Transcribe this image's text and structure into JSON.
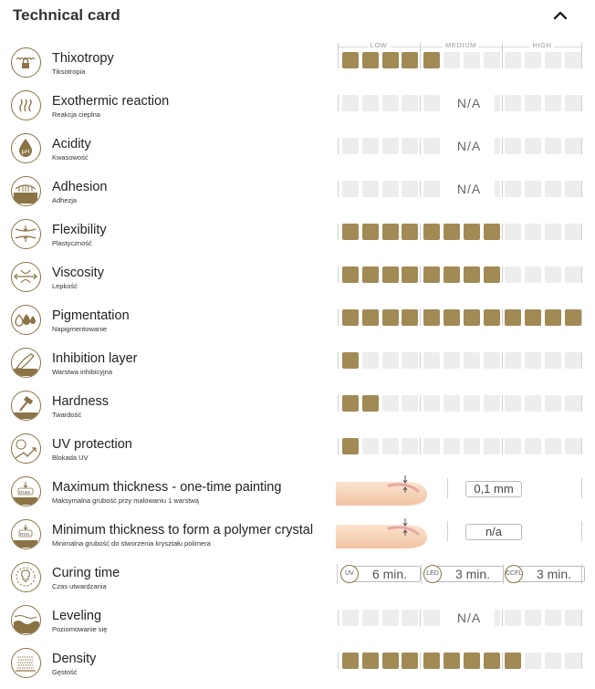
{
  "card": {
    "title": "Technical card"
  },
  "scale": {
    "low": "LOW",
    "medium": "MEDIUM",
    "high": "HIGH"
  },
  "colors": {
    "accent": "#a28a55",
    "empty": "#ededed",
    "icon_border": "#8a7344"
  },
  "rows": [
    {
      "name": "Thixotropy",
      "sub": "Tiksotropia",
      "type": "level",
      "level": 5,
      "icon": "thixotropy-icon"
    },
    {
      "name": "Exothermic reaction",
      "sub": "Reakcja cieplna",
      "type": "na",
      "value": "N/A",
      "icon": "heat-icon"
    },
    {
      "name": "Acidity",
      "sub": "Kwasowość",
      "type": "na",
      "value": "N/A",
      "icon": "ph-drop-icon"
    },
    {
      "name": "Adhesion",
      "sub": "Adhezja",
      "type": "na",
      "value": "N/A",
      "icon": "adhesion-icon"
    },
    {
      "name": "Flexibility",
      "sub": "Plastyczność",
      "type": "level",
      "level": 8,
      "icon": "flexibility-icon"
    },
    {
      "name": "Viscosity",
      "sub": "Lepkość",
      "type": "level",
      "level": 8,
      "icon": "viscosity-icon"
    },
    {
      "name": "Pigmentation",
      "sub": "Napigmentowanie",
      "type": "level",
      "level": 12,
      "icon": "pigment-drops-icon"
    },
    {
      "name": "Inhibition layer",
      "sub": "Warstwa inhibicyjna",
      "type": "level",
      "level": 1,
      "icon": "inhibition-layer-icon"
    },
    {
      "name": "Hardness",
      "sub": "Twardość",
      "type": "level",
      "level": 2,
      "icon": "hammer-icon"
    },
    {
      "name": "UV protection",
      "sub": "Blokada UV",
      "type": "level",
      "level": 1,
      "icon": "uv-sun-icon"
    },
    {
      "name": "Maximum thickness - one-time painting",
      "sub": "Maksymalna grubość przy malowaniu 1 warstwą",
      "type": "value",
      "value": "0,1 mm",
      "icon": "max-thickness-icon",
      "badge": "max."
    },
    {
      "name": "Minimum thickness to form a polymer crystal",
      "sub": "Minimalna grubość do stworzenia kryształu polimera",
      "type": "value",
      "value": "n/a",
      "icon": "min-thickness-icon",
      "badge": "min."
    },
    {
      "name": "Curing time",
      "sub": "Czas utwardzania",
      "type": "curing",
      "icon": "lamp-icon",
      "curing": [
        {
          "lamp": "UV",
          "time": "6 min."
        },
        {
          "lamp": "LED",
          "time": "3 min."
        },
        {
          "lamp": "CCFL",
          "time": "3 min."
        }
      ]
    },
    {
      "name": "Leveling",
      "sub": "Poziomowanie się",
      "type": "na",
      "value": "N/A",
      "icon": "leveling-icon"
    },
    {
      "name": "Density",
      "sub": "Gęstość",
      "type": "level",
      "level": 9,
      "icon": "density-icon"
    }
  ]
}
